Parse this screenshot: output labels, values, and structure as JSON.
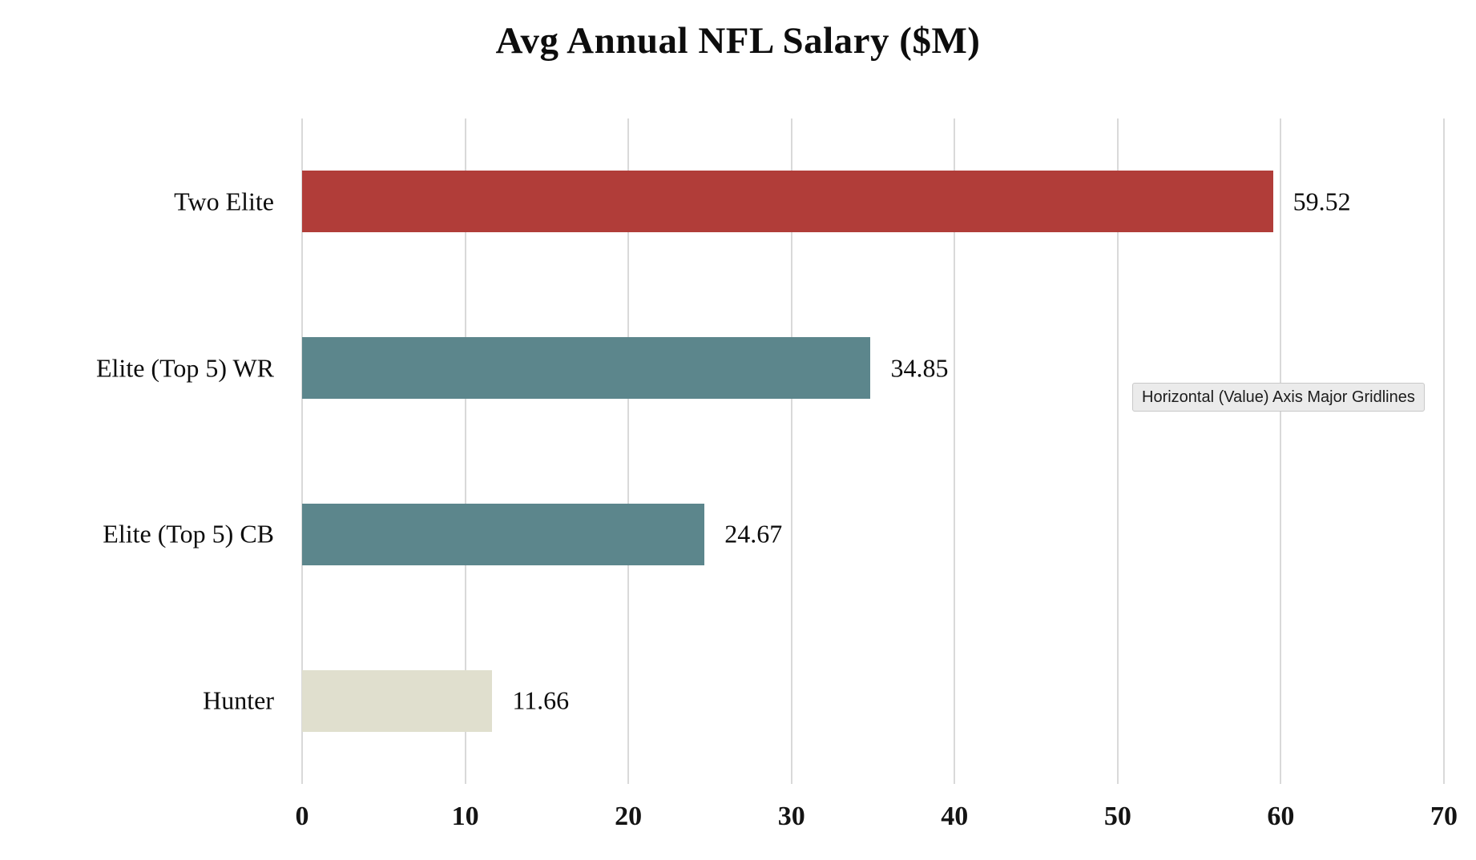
{
  "app": {
    "background": "#FFFFFF"
  },
  "tooltip": {
    "text": "Horizontal (Value) Axis Major Gridlines",
    "bg": "#EBEBEB",
    "border": "#C9C9C9"
  },
  "chart_data": {
    "type": "bar",
    "orientation": "horizontal",
    "title": "Avg Annual NFL Salary ($M)",
    "categories": [
      "Two Elite",
      "Elite (Top 5) WR",
      "Elite (Top 5) CB",
      "Hunter"
    ],
    "values": [
      59.52,
      34.85,
      24.67,
      11.66
    ],
    "value_labels": [
      "59.52",
      "34.85",
      "24.67",
      "11.66"
    ],
    "bar_colors": [
      "#B13D39",
      "#5C868C",
      "#5C868C",
      "#E0DFCE"
    ],
    "xlim": [
      0,
      70
    ],
    "x_ticks": [
      "0",
      "10",
      "20",
      "30",
      "40",
      "50",
      "60",
      "70"
    ],
    "x_tick_values": [
      0,
      10,
      20,
      30,
      40,
      50,
      60,
      70
    ],
    "grid": "vertical-major-gridlines",
    "gridline_color": "#D9D9D9",
    "legend": "none"
  }
}
